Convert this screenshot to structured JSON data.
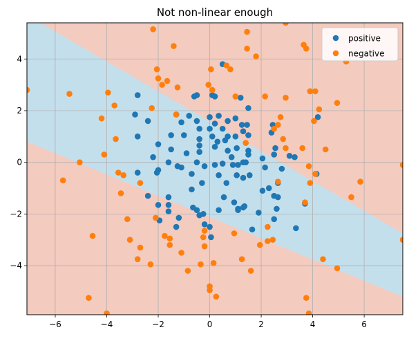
{
  "chart_data": {
    "type": "scatter",
    "title": "Not non-linear enough",
    "xlim": [
      -7.1,
      7.5
    ],
    "ylim": [
      -5.9,
      5.4
    ],
    "x_ticks": [
      -6,
      -4,
      -2,
      0,
      2,
      4,
      6
    ],
    "y_ticks": [
      -4,
      -2,
      0,
      2,
      4
    ],
    "x_tick_labels": [
      "−6",
      "−4",
      "−2",
      "0",
      "2",
      "4",
      "6"
    ],
    "y_tick_labels": [
      "−4",
      "−2",
      "0",
      "2",
      "4"
    ],
    "grid": true,
    "legend_position": "top-right",
    "colors": {
      "positive": "#1f77b4",
      "negative": "#ff7f0e",
      "region_positive": "#c4dfec",
      "region_negative": "#f4cbbf",
      "grid": "#b0b0b0",
      "axis": "#000000"
    },
    "decision_boundary": {
      "upper": {
        "left_y": 5.7,
        "right_y": -2.75
      },
      "lower": {
        "left_y": 0.8,
        "right_y": -5.2
      }
    },
    "series": [
      {
        "name": "positive",
        "color": "#1f77b4",
        "points": [
          [
            0.5,
            3.8
          ],
          [
            0.1,
            2.6
          ],
          [
            0.2,
            2.55
          ],
          [
            1.2,
            2.5
          ],
          [
            -0.5,
            2.6
          ],
          [
            -0.6,
            2.55
          ],
          [
            -2.8,
            2.6
          ],
          [
            -2.9,
            1.85
          ],
          [
            -2.4,
            1.6
          ],
          [
            -1.3,
            1.85
          ],
          [
            -0.8,
            1.8
          ],
          [
            -0.5,
            1.6
          ],
          [
            -1.1,
            1.55
          ],
          [
            -0.4,
            1.3
          ],
          [
            0.0,
            1.75
          ],
          [
            0.2,
            1.5
          ],
          [
            0.35,
            1.8
          ],
          [
            0.7,
            1.6
          ],
          [
            1.0,
            1.7
          ],
          [
            1.25,
            1.45
          ],
          [
            1.45,
            1.45
          ],
          [
            1.5,
            2.1
          ],
          [
            -1.5,
            1.05
          ],
          [
            -1.0,
            1.05
          ],
          [
            -0.4,
            0.9
          ],
          [
            0.0,
            1.3
          ],
          [
            0.1,
            1.0
          ],
          [
            0.5,
            1.3
          ],
          [
            0.7,
            1.0
          ],
          [
            1.0,
            1.0
          ],
          [
            1.3,
            1.2
          ],
          [
            1.5,
            1.05
          ],
          [
            -2.8,
            1.0
          ],
          [
            -2.0,
            0.7
          ],
          [
            -1.5,
            0.5
          ],
          [
            -0.9,
            0.35
          ],
          [
            -0.4,
            0.4
          ],
          [
            0.3,
            0.8
          ],
          [
            0.6,
            0.85
          ],
          [
            0.7,
            0.45
          ],
          [
            1.05,
            0.55
          ],
          [
            1.5,
            0.45
          ],
          [
            -2.2,
            0.2
          ],
          [
            -1.6,
            0.0
          ],
          [
            -1.25,
            -0.15
          ],
          [
            -0.5,
            0.0
          ],
          [
            -0.2,
            -0.15
          ],
          [
            0.2,
            0.6
          ],
          [
            0.2,
            -0.1
          ],
          [
            0.5,
            -0.05
          ],
          [
            0.85,
            0.2
          ],
          [
            0.9,
            -0.1
          ],
          [
            1.1,
            -0.1
          ],
          [
            1.3,
            0.0
          ],
          [
            1.5,
            0.3
          ],
          [
            1.4,
            0.0
          ],
          [
            -2.8,
            -0.4
          ],
          [
            -2.0,
            -0.3
          ],
          [
            -2.05,
            -0.4
          ],
          [
            -1.1,
            -0.2
          ],
          [
            -0.7,
            -0.45
          ],
          [
            0.35,
            -0.5
          ],
          [
            0.65,
            -0.8
          ],
          [
            1.05,
            -0.5
          ],
          [
            1.3,
            -0.6
          ],
          [
            1.55,
            -0.5
          ],
          [
            2.05,
            0.15
          ],
          [
            2.15,
            -0.2
          ],
          [
            2.5,
            0.3
          ],
          [
            2.55,
            0.55
          ],
          [
            2.8,
            -0.25
          ],
          [
            3.1,
            0.25
          ],
          [
            3.3,
            0.2
          ],
          [
            4.15,
            -0.45
          ],
          [
            2.65,
            -0.8
          ],
          [
            2.3,
            -1.0
          ],
          [
            2.5,
            -1.3
          ],
          [
            2.65,
            -1.35
          ],
          [
            2.05,
            -1.1
          ],
          [
            3.7,
            -1.6
          ],
          [
            -0.3,
            -0.8
          ],
          [
            -0.7,
            -1.05
          ],
          [
            0.55,
            -1.35
          ],
          [
            0.95,
            -1.55
          ],
          [
            1.1,
            -1.8
          ],
          [
            1.35,
            -1.7
          ],
          [
            1.9,
            -1.95
          ],
          [
            2.6,
            -1.8
          ],
          [
            3.35,
            -2.55
          ],
          [
            -1.6,
            -1.35
          ],
          [
            -2.4,
            -1.3
          ],
          [
            -2.0,
            -1.65
          ],
          [
            -1.6,
            -1.65
          ],
          [
            -0.65,
            -1.75
          ],
          [
            -0.5,
            -1.85
          ],
          [
            0.35,
            -1.85
          ],
          [
            1.1,
            -1.85
          ],
          [
            1.3,
            -1.75
          ],
          [
            -0.25,
            -2.0
          ],
          [
            -1.6,
            -1.9
          ],
          [
            -1.95,
            -2.25
          ],
          [
            -1.2,
            -2.15
          ],
          [
            -1.3,
            -2.5
          ],
          [
            -0.2,
            -2.4
          ],
          [
            0.0,
            -2.5
          ],
          [
            1.65,
            -2.6
          ],
          [
            2.5,
            -2.2
          ],
          [
            0.05,
            -2.9
          ],
          [
            -0.4,
            -2.05
          ],
          [
            4.2,
            1.75
          ],
          [
            2.45,
            1.45
          ],
          [
            2.4,
            1.15
          ],
          [
            -0.4,
            0.65
          ]
        ]
      },
      {
        "name": "negative",
        "color": "#ff7f0e",
        "points": [
          [
            -2.2,
            5.15
          ],
          [
            -1.4,
            4.5
          ],
          [
            1.45,
            5.05
          ],
          [
            2.95,
            5.4
          ],
          [
            1.45,
            4.4
          ],
          [
            1.8,
            4.1
          ],
          [
            3.65,
            4.55
          ],
          [
            3.75,
            4.4
          ],
          [
            0.65,
            3.75
          ],
          [
            0.8,
            3.6
          ],
          [
            0.05,
            3.6
          ],
          [
            5.3,
            3.9
          ],
          [
            -1.65,
            3.15
          ],
          [
            -2.0,
            3.25
          ],
          [
            -2.05,
            3.6
          ],
          [
            -1.85,
            3.0
          ],
          [
            -1.25,
            2.9
          ],
          [
            -0.05,
            3.0
          ],
          [
            0.1,
            2.8
          ],
          [
            1.0,
            2.55
          ],
          [
            2.15,
            2.55
          ],
          [
            2.95,
            2.5
          ],
          [
            3.9,
            2.75
          ],
          [
            4.1,
            2.75
          ],
          [
            -7.1,
            2.8
          ],
          [
            -5.45,
            2.65
          ],
          [
            -3.95,
            2.7
          ],
          [
            -3.7,
            2.2
          ],
          [
            -2.25,
            2.1
          ],
          [
            4.95,
            2.3
          ],
          [
            4.25,
            2.05
          ],
          [
            4.05,
            1.6
          ],
          [
            -4.2,
            1.7
          ],
          [
            -1.3,
            1.85
          ],
          [
            2.5,
            1.3
          ],
          [
            2.75,
            1.75
          ],
          [
            2.65,
            1.45
          ],
          [
            -3.65,
            0.9
          ],
          [
            2.85,
            0.9
          ],
          [
            1.4,
            0.75
          ],
          [
            3.6,
            0.55
          ],
          [
            2.95,
            0.55
          ],
          [
            4.5,
            0.5
          ],
          [
            -4.1,
            0.3
          ],
          [
            -5.05,
            0.0
          ],
          [
            -3.55,
            -0.4
          ],
          [
            -3.35,
            -0.5
          ],
          [
            3.85,
            -0.15
          ],
          [
            4.1,
            -0.45
          ],
          [
            -5.7,
            -0.7
          ],
          [
            -2.7,
            -0.8
          ],
          [
            3.9,
            -0.8
          ],
          [
            5.85,
            -0.75
          ],
          [
            -3.45,
            -1.2
          ],
          [
            7.5,
            -0.1
          ],
          [
            5.5,
            -1.35
          ],
          [
            2.65,
            -0.75
          ],
          [
            3.7,
            -1.55
          ],
          [
            -3.2,
            -2.2
          ],
          [
            -2.1,
            -2.15
          ],
          [
            -1.75,
            -2.85
          ],
          [
            -1.55,
            -2.95
          ],
          [
            -1.55,
            -3.2
          ],
          [
            -0.25,
            -2.9
          ],
          [
            -0.2,
            -2.65
          ],
          [
            -0.2,
            -3.25
          ],
          [
            -3.1,
            -3.0
          ],
          [
            -2.7,
            -3.3
          ],
          [
            -2.8,
            -3.75
          ],
          [
            -2.3,
            -3.95
          ],
          [
            -1.1,
            -3.5
          ],
          [
            -0.35,
            -3.95
          ],
          [
            0.15,
            -3.9
          ],
          [
            0.95,
            -2.75
          ],
          [
            1.95,
            -3.2
          ],
          [
            2.25,
            -2.5
          ],
          [
            2.25,
            -3.05
          ],
          [
            2.45,
            -3.0
          ],
          [
            1.25,
            -3.75
          ],
          [
            1.6,
            -4.2
          ],
          [
            -0.85,
            -4.2
          ],
          [
            0.0,
            -4.8
          ],
          [
            0.0,
            -4.95
          ],
          [
            0.25,
            -5.2
          ],
          [
            -4.55,
            -2.85
          ],
          [
            -4.7,
            -5.25
          ],
          [
            -4.0,
            -5.85
          ],
          [
            3.75,
            -5.25
          ],
          [
            3.85,
            -5.85
          ],
          [
            4.4,
            -3.75
          ],
          [
            4.95,
            -4.1
          ],
          [
            7.5,
            -3.0
          ]
        ]
      }
    ]
  }
}
